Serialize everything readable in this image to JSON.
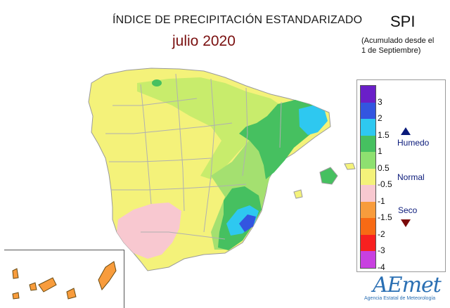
{
  "header": {
    "title": "ÍNDICE DE PRECIPITACIÓN ESTANDARIZADO",
    "subtitle": "julio 2020",
    "index_code": "SPI",
    "note_line1": "(Acumulado desde el",
    "note_line2": "1 de Septiembre)"
  },
  "legend": {
    "ticks": [
      "3",
      "2",
      "1.5",
      "1",
      "0.5",
      "-0.5",
      "-1",
      "-1.5",
      "-2",
      "-3",
      "-4"
    ],
    "colors": [
      "#6a1fc8",
      "#3355e0",
      "#2ec8f0",
      "#46c060",
      "#8ee070",
      "#f4f27a",
      "#f8c8d0",
      "#f89c3c",
      "#f86a14",
      "#f82020",
      "#c840e0"
    ],
    "humedo_label": "Humedo",
    "normal_label": "Normal",
    "seco_label": "Seco"
  },
  "branding": {
    "logo_text": "AEmet",
    "logo_sub": "Agencia Estatal de Meteorología"
  }
}
